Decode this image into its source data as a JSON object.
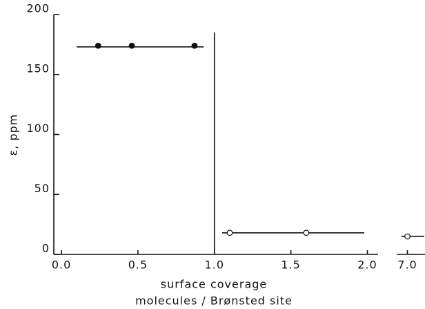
{
  "chart_data": {
    "type": "scatter",
    "xlabel": [
      "surface coverage",
      "molecules / Brønsted site"
    ],
    "ylabel": "ε, ppm",
    "xlim": [
      -0.05,
      2.07
    ],
    "xticks": [
      {
        "value": 0,
        "label": "0.0"
      },
      {
        "value": 0.5,
        "label": "0.5"
      },
      {
        "value": 1,
        "label": "1.0"
      },
      {
        "value": 1.5,
        "label": "1.5"
      },
      {
        "value": 2,
        "label": "2.0"
      }
    ],
    "x2lim": [
      6.93,
      7.115
    ],
    "x2ticks": [
      {
        "value": 7,
        "label": "7.0"
      }
    ],
    "ylim": [
      0,
      200
    ],
    "yticks": [
      0,
      50,
      100,
      150,
      200
    ],
    "series": [
      {
        "marker": "filled",
        "x": [
          0.24,
          0.46,
          0.87
        ],
        "values": [
          174,
          174,
          174
        ],
        "fit": {
          "value": 173,
          "x": [
            0.1,
            0.93
          ]
        }
      },
      {
        "marker": "open",
        "x": [
          1.1,
          1.6
        ],
        "values": [
          18,
          18
        ],
        "fit": {
          "value": 18,
          "x": [
            1.05,
            1.98
          ]
        }
      },
      {
        "marker": "open",
        "axis": "x2",
        "x": [
          7.0
        ],
        "values": [
          15
        ],
        "fit": {
          "value": 15,
          "x": [
            6.96,
            7.115
          ]
        }
      }
    ],
    "divider": {
      "x": 1.0,
      "top": 185
    }
  }
}
